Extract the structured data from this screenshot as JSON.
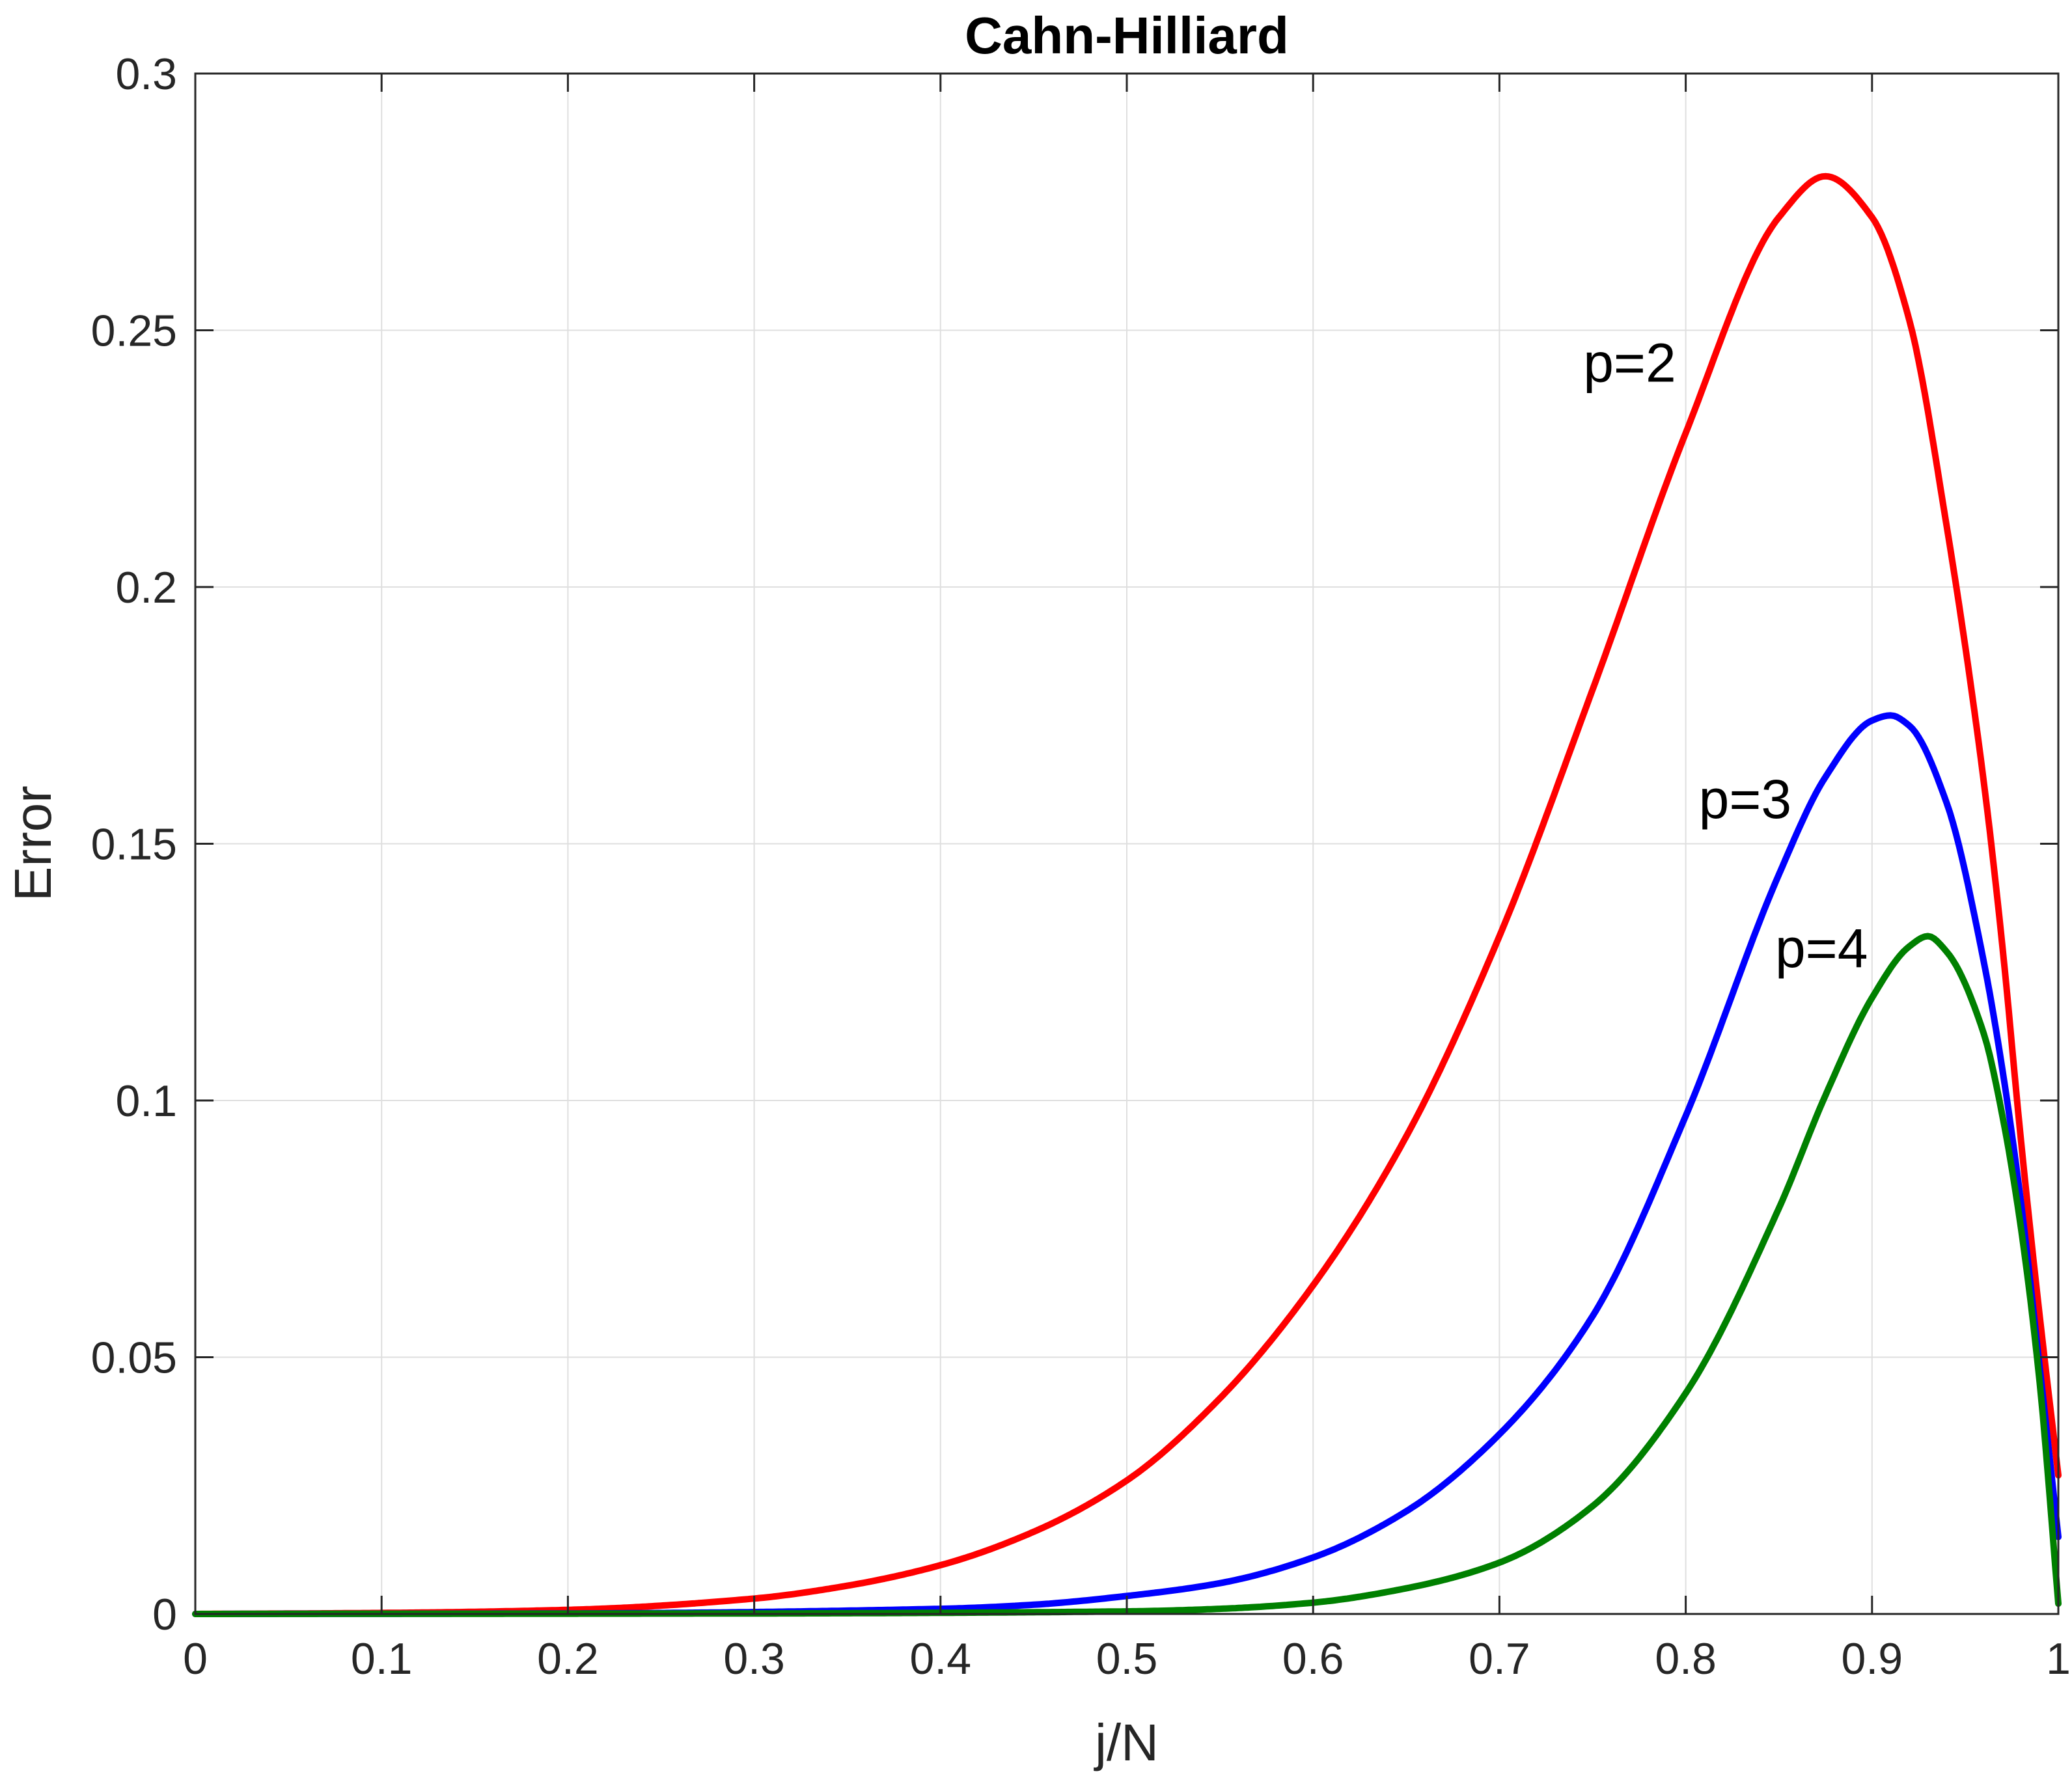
{
  "chart_data": {
    "type": "line",
    "title": "Cahn-Hilliard",
    "xlabel": "j/N",
    "ylabel": "Error",
    "xlim": [
      0,
      1
    ],
    "ylim": [
      0,
      0.3
    ],
    "grid": true,
    "xticks": [
      0,
      0.1,
      0.2,
      0.3,
      0.4,
      0.5,
      0.6,
      0.7,
      0.8,
      0.9,
      1
    ],
    "xtick_labels": [
      "0",
      "0.1",
      "0.2",
      "0.3",
      "0.4",
      "0.5",
      "0.6",
      "0.7",
      "0.8",
      "0.9",
      "1"
    ],
    "yticks": [
      0,
      0.05,
      0.1,
      0.15,
      0.2,
      0.25,
      0.3
    ],
    "ytick_labels": [
      "0",
      "0.05",
      "0.1",
      "0.15",
      "0.2",
      "0.25",
      "0.3"
    ],
    "series": [
      {
        "key": "p2",
        "color": "#ff0000",
        "x": [
          0,
          0.1,
          0.2,
          0.3,
          0.35,
          0.4,
          0.45,
          0.5,
          0.55,
          0.6,
          0.65,
          0.7,
          0.75,
          0.8,
          0.85,
          0.875,
          0.9,
          0.92,
          0.94,
          0.96,
          0.97,
          0.98,
          0.99,
          1.0
        ],
        "y": [
          0,
          0.0002,
          0.0008,
          0.003,
          0.0055,
          0.0095,
          0.016,
          0.026,
          0.042,
          0.064,
          0.093,
          0.132,
          0.18,
          0.23,
          0.272,
          0.28,
          0.272,
          0.252,
          0.212,
          0.162,
          0.13,
          0.092,
          0.058,
          0.027
        ]
      },
      {
        "key": "p3",
        "color": "#0000ff",
        "x": [
          0,
          0.2,
          0.4,
          0.45,
          0.5,
          0.55,
          0.6,
          0.65,
          0.7,
          0.75,
          0.8,
          0.85,
          0.875,
          0.9,
          0.91,
          0.92,
          0.94,
          0.96,
          0.97,
          0.98,
          0.99,
          1.0
        ],
        "y": [
          0,
          0.0001,
          0.001,
          0.0018,
          0.0035,
          0.006,
          0.011,
          0.02,
          0.035,
          0.058,
          0.097,
          0.144,
          0.163,
          0.174,
          0.175,
          0.173,
          0.158,
          0.127,
          0.106,
          0.08,
          0.048,
          0.015
        ]
      },
      {
        "key": "p4",
        "color": "#008000",
        "x": [
          0,
          0.3,
          0.5,
          0.55,
          0.6,
          0.65,
          0.7,
          0.75,
          0.8,
          0.85,
          0.875,
          0.9,
          0.92,
          0.93,
          0.94,
          0.96,
          0.97,
          0.98,
          0.99,
          1.0
        ],
        "y": [
          0,
          0.0001,
          0.0005,
          0.001,
          0.0022,
          0.005,
          0.01,
          0.021,
          0.043,
          0.079,
          0.101,
          0.12,
          0.13,
          0.132,
          0.129,
          0.113,
          0.097,
          0.075,
          0.045,
          0.002
        ]
      }
    ],
    "annotations": [
      {
        "text": "p=2",
        "x": 0.745,
        "y": 0.24
      },
      {
        "text": "p=3",
        "x": 0.807,
        "y": 0.155
      },
      {
        "text": "p=4",
        "x": 0.848,
        "y": 0.126
      }
    ]
  }
}
